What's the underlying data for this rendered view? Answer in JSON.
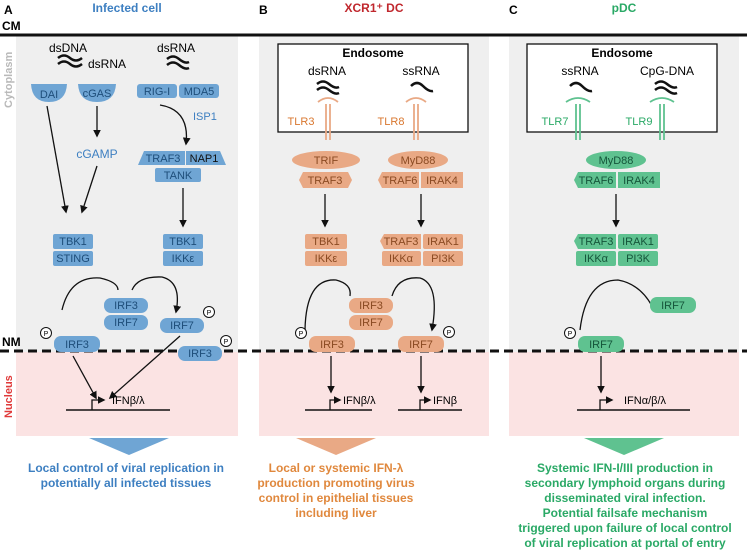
{
  "labels": {
    "cm": "CM",
    "nm": "NM",
    "cytoplasm": "Cytoplasm",
    "nucleus": "Nucleus"
  },
  "panels": [
    {
      "letter": "A",
      "title": "Infected cell",
      "color": "#3d7fc1",
      "sensor_top_left": "dsDNA",
      "sensor_top_right": "dsRNA",
      "dsrna_small": "dsRNA",
      "dai": "DAI",
      "cgas": "cGAS",
      "rigi": "RIG-I",
      "mda5": "MDA5",
      "isp1": "ISP1",
      "cgamp": "cGAMP",
      "traf3": "TRAF3",
      "nap1": "NAP1",
      "tank": "TANK",
      "tbk1_left": "TBK1",
      "sting": "STING",
      "tbk1_right": "TBK1",
      "ikke": "IKKε",
      "irf3_mid": "IRF3",
      "irf7_mid": "IRF7",
      "irf3_left": "IRF3",
      "irf7_right": "IRF7",
      "irf3_right": "IRF3",
      "gene": "IFNβ/λ",
      "conclusion": [
        "Local control of viral replication in",
        "potentially all infected tissues"
      ]
    },
    {
      "letter": "B",
      "title": "XCR1⁺ DC",
      "color": "#c0272d",
      "endosome": "Endosome",
      "ligand_left": "dsRNA",
      "ligand_right": "ssRNA",
      "tlr_left": "TLR3",
      "tlr_right": "TLR8",
      "trif": "TRIF",
      "traf3": "TRAF3",
      "myd88": "MyD88",
      "traf6": "TRAF6",
      "irak4": "IRAK4",
      "tbk1": "TBK1",
      "ikke": "IKKε",
      "traf3_b": "TRAF3",
      "irak1": "IRAK1",
      "ikka": "IKKα",
      "pi3k": "PI3K",
      "irf3_mid": "IRF3",
      "irf7_mid": "IRF7",
      "irf3_left": "IRF3",
      "irf7_right": "IRF7",
      "gene_left": "IFNβ/λ",
      "gene_right": "IFNβ",
      "conclusion": [
        "Local or systemic IFN-λ",
        "production promoting virus",
        "control in epithelial tissues",
        "including liver"
      ]
    },
    {
      "letter": "C",
      "title": "pDC",
      "color": "#2aa966",
      "endosome": "Endosome",
      "ligand_left": "ssRNA",
      "ligand_right": "CpG-DNA",
      "tlr_left": "TLR7",
      "tlr_right": "TLR9",
      "myd88": "MyD88",
      "traf6": "TRAF6",
      "irak4": "IRAK4",
      "traf3": "TRAF3",
      "irak1": "IRAK1",
      "ikka": "IKKα",
      "pi3k": "PI3K",
      "irf7_top": "IRF7",
      "irf7_bottom": "IRF7",
      "gene": "IFNα/β/λ",
      "conclusion": [
        "Systemic IFN-I/III production in",
        "secondary lymphoid organs during",
        "disseminated viral infection.",
        "Potential failsafe mechanism",
        "triggered upon failure of local control",
        "of viral replication at portal of entry"
      ]
    }
  ],
  "colors": {
    "blue_fill": "#6fa5d4",
    "orange_fill": "#e9a985",
    "green_fill": "#5fc290",
    "cytoplasm_bg": "#efefef",
    "nucleus_bg": "#fbe3e3",
    "nucleus_text": "#e03a3a",
    "cytoplasm_text": "#b9b9b9"
  }
}
